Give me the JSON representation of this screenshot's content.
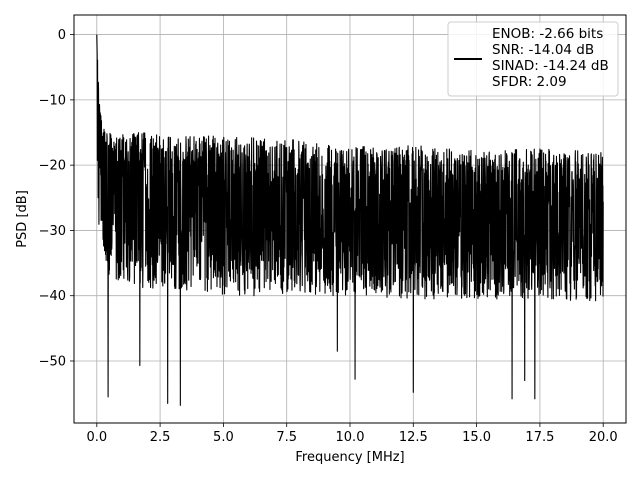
{
  "chart_data": {
    "type": "line",
    "xlabel": "Frequency [MHz]",
    "ylabel": "PSD [dB]",
    "xlim": [
      -0.9,
      20.9
    ],
    "ylim": [
      -59.5,
      3.0
    ],
    "xticks": [
      0.0,
      2.5,
      5.0,
      7.5,
      10.0,
      12.5,
      15.0,
      17.5,
      20.0
    ],
    "xtick_labels": [
      "0.0",
      "2.5",
      "5.0",
      "7.5",
      "10.0",
      "12.5",
      "15.0",
      "17.5",
      "20.0"
    ],
    "yticks": [
      0,
      -10,
      -20,
      -30,
      -40,
      -50
    ],
    "ytick_labels": [
      "0",
      "−10",
      "−20",
      "−30",
      "−40",
      "−50"
    ],
    "grid": true,
    "legend_position": "top-right",
    "line_color": "#000000",
    "legend": {
      "entries": [
        "ENOB: -2.66 bits",
        "SNR: -14.04 dB",
        "SINAD: -14.24 dB",
        "SFDR: 2.09"
      ]
    },
    "series": [
      {
        "x": [
          0.0,
          0.02,
          0.05,
          0.1,
          0.15,
          0.2,
          0.3,
          0.4,
          0.5,
          1.0,
          2.0,
          3.0,
          4.0,
          5.0,
          7.5,
          10.0,
          12.5,
          15.0,
          17.5,
          20.0
        ],
        "y": [
          0.0,
          -3.0,
          -8.0,
          -12.0,
          -14.0,
          -18.0,
          -22.0,
          -24.0,
          -25.0,
          -25.5,
          -26.0,
          -26.5,
          -27.0,
          -27.0,
          -27.5,
          -28.0,
          -28.5,
          -28.5,
          -28.5,
          -29.0
        ],
        "envelope_upper": [
          0.0,
          -2.0,
          -6.0,
          -10.0,
          -12.0,
          -13.5,
          -14.0,
          -14.5,
          -15.0,
          -15.0,
          -15.0,
          -15.0,
          -15.5,
          -15.5,
          -16.0,
          -17.0,
          -17.0,
          -17.5,
          -17.5,
          -18.0
        ],
        "envelope_lower": [
          -12.0,
          -20.0,
          -25.0,
          -31.0,
          -33.0,
          -34.0,
          -35.0,
          -36.0,
          -37.0,
          -38.0,
          -39.0,
          -39.0,
          -39.5,
          -40.0,
          -40.0,
          -40.0,
          -40.5,
          -40.5,
          -40.5,
          -41.0
        ],
        "notable_minima": [
          {
            "x": 0.45,
            "y": -55.5
          },
          {
            "x": 1.7,
            "y": -50.7
          },
          {
            "x": 2.8,
            "y": -56.5
          },
          {
            "x": 3.3,
            "y": -56.8
          },
          {
            "x": 9.5,
            "y": -48.5
          },
          {
            "x": 10.2,
            "y": -52.8
          },
          {
            "x": 12.5,
            "y": -54.8
          },
          {
            "x": 16.4,
            "y": -55.8
          },
          {
            "x": 16.9,
            "y": -53.0
          },
          {
            "x": 17.3,
            "y": -55.8
          }
        ]
      }
    ]
  }
}
